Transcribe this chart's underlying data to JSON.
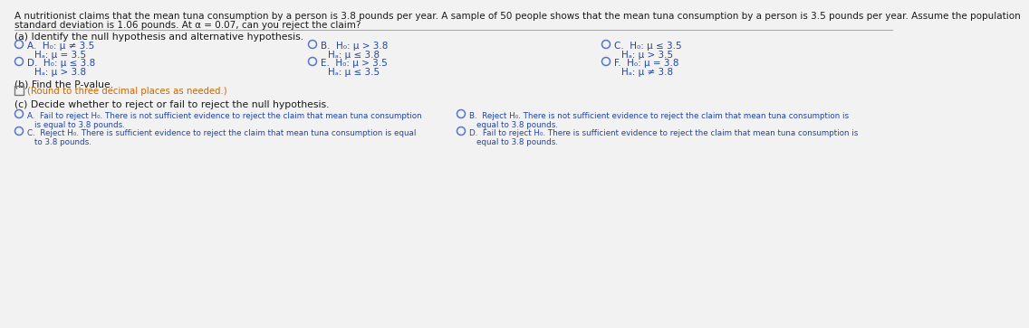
{
  "bg_color": "#f2f2f2",
  "title_line1": "A nutritionist claims that the mean tuna consumption by a person is 3.8 pounds per year. A sample of 50 people shows that the mean tuna consumption by a person is 3.5 pounds per year. Assume the population",
  "title_line2": "standard deviation is 1.06 pounds. At α = 0.07, can you reject the claim?",
  "part_a_label": "(a) Identify the null hypothesis and alternative hypothesis.",
  "part_b_label": "(b) Find the P-value.",
  "part_b_sub": "(Round to three decimal places as needed.)",
  "part_c_label": "(c) Decide whether to reject or fail to reject the null hypothesis.",
  "options_a": [
    {
      "label": "A.",
      "h0": "H₀: μ ≠ 3.5",
      "ha": "Hₐ: μ = 3.5"
    },
    {
      "label": "B.",
      "h0": "H₀: μ > 3.8",
      "ha": "Hₐ: μ ≤ 3.8"
    },
    {
      "label": "C.",
      "h0": "H₀: μ ≤ 3.5",
      "ha": "Hₐ: μ > 3.5"
    },
    {
      "label": "D.",
      "h0": "H₀: μ ≤ 3.8",
      "ha": "Hₐ: μ > 3.8"
    },
    {
      "label": "E.",
      "h0": "H₀: μ > 3.5",
      "ha": "Hₐ: μ ≤ 3.5"
    },
    {
      "label": "F.",
      "h0": "H₀: μ = 3.8",
      "ha": "Hₐ: μ ≠ 3.8"
    }
  ],
  "options_c": [
    {
      "label": "A.",
      "line1": "Fail to reject H₀. There is not sufficient evidence to reject the claim that mean tuna consumption",
      "line2": "is equal to 3.8 pounds."
    },
    {
      "label": "B.",
      "line1": "Reject H₀. There is not sufficient evidence to reject the claim that mean tuna consumption is",
      "line2": "equal to 3.8 pounds."
    },
    {
      "label": "C.",
      "line1": "Reject H₀. There is sufficient evidence to reject the claim that mean tuna consumption is equal",
      "line2": "to 3.8 pounds."
    },
    {
      "label": "D.",
      "line1": "Fail to reject H₀. There is sufficient evidence to reject the claim that mean tuna consumption is",
      "line2": "equal to 3.8 pounds."
    }
  ],
  "text_color": "#1a1a1a",
  "blue_color": "#2244aa",
  "orange_color": "#cc6600",
  "circle_color": "#5577cc",
  "fs_title": 7.5,
  "fs_main": 7.8,
  "fs_option": 7.5,
  "fs_sub": 7.3
}
